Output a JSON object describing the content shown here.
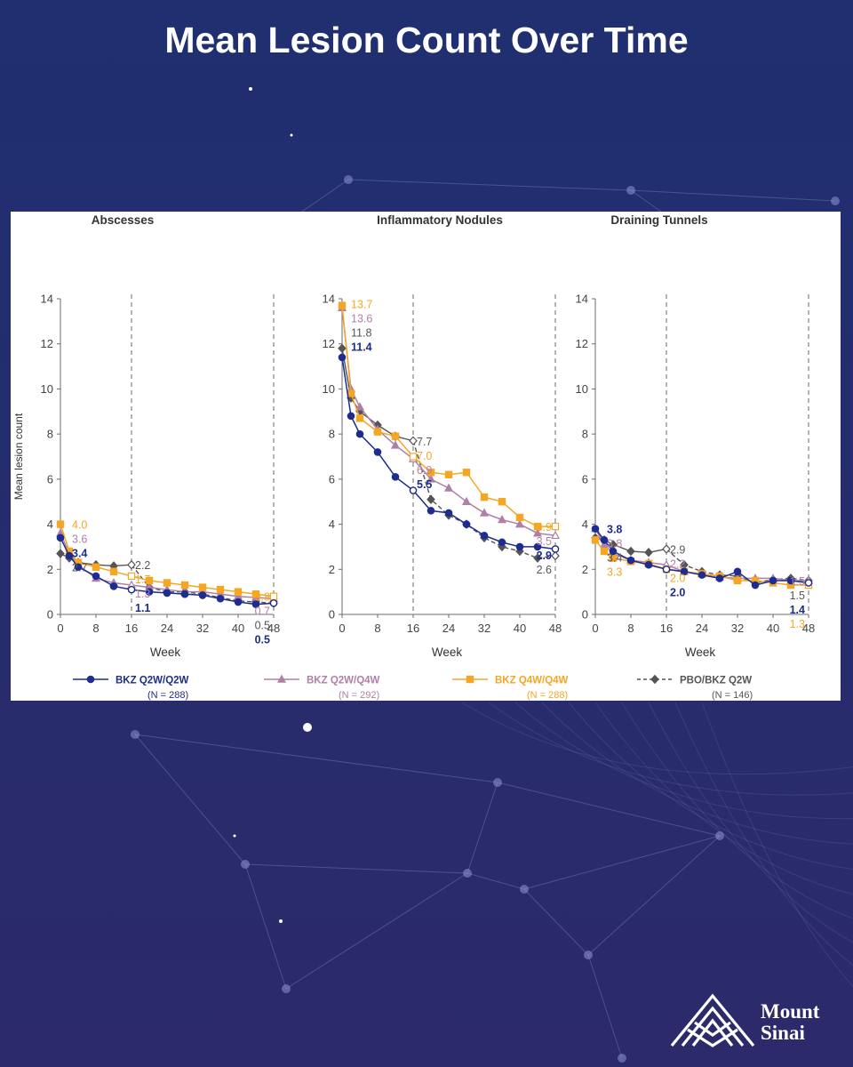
{
  "page": {
    "title": "Mean Lesion Count Over Time"
  },
  "brand": {
    "name_line1": "Mount",
    "name_line2": "Sinai"
  },
  "colors": {
    "background_top": "#1f2f70",
    "background_bottom": "#2c2a6a",
    "network": "#8e96d4",
    "q2w": "#1c2c8f",
    "q2wq4w": "#b07fa8",
    "q4w": "#f5a623",
    "pbo": "#555555",
    "axis": "#6b6b6b",
    "title_text": "#ffffff"
  },
  "chart_data": {
    "type": "line",
    "x": [
      0,
      2,
      4,
      8,
      12,
      16,
      20,
      24,
      28,
      32,
      36,
      40,
      44,
      48
    ],
    "xlabel": "Week",
    "ylabel": "Mean lesion count",
    "xticks": [
      0,
      8,
      16,
      24,
      32,
      40,
      48
    ],
    "yticks": [
      0,
      2,
      4,
      6,
      8,
      10,
      12,
      14
    ],
    "xlim": [
      0,
      48
    ],
    "ylim": [
      0,
      14
    ],
    "reference_lines_x": [
      16,
      48
    ],
    "legend": [
      {
        "key": "q2w",
        "label": "BKZ Q2W/Q2W",
        "n": "(N = 288)",
        "marker": "circle"
      },
      {
        "key": "q2wq4w",
        "label": "BKZ Q2W/Q4W",
        "n": "(N = 292)",
        "marker": "triangle"
      },
      {
        "key": "q4w",
        "label": "BKZ Q4W/Q4W",
        "n": "(N = 288)",
        "marker": "square"
      },
      {
        "key": "pbo",
        "label": "PBO/BKZ Q2W",
        "n": "(N = 146)",
        "marker": "diamond"
      }
    ],
    "panels": [
      {
        "title": "Abscesses",
        "series": [
          {
            "key": "q2w",
            "values": [
              3.4,
              2.6,
              2.1,
              1.7,
              1.25,
              1.1,
              1.0,
              0.95,
              0.9,
              0.85,
              0.7,
              0.55,
              0.45,
              0.5
            ]
          },
          {
            "key": "q2wq4w",
            "values": [
              3.6,
              2.7,
              2.2,
              1.6,
              1.4,
              1.3,
              1.2,
              1.1,
              1.0,
              1.0,
              0.9,
              0.8,
              0.75,
              0.7
            ]
          },
          {
            "key": "q4w",
            "values": [
              4.0,
              2.8,
              2.3,
              2.1,
              1.9,
              1.7,
              1.5,
              1.4,
              1.3,
              1.2,
              1.1,
              1.0,
              0.9,
              0.8
            ]
          },
          {
            "key": "pbo",
            "values": [
              2.7,
              2.5,
              2.3,
              2.2,
              2.15,
              2.2,
              1.2,
              1.0,
              1.0,
              0.9,
              0.75,
              0.6,
              0.55,
              0.5
            ]
          }
        ],
        "labels_start": [
          {
            "key": "q4w",
            "text": "4.0"
          },
          {
            "key": "q2wq4w",
            "text": "3.6"
          },
          {
            "key": "q2w",
            "text": "3.4"
          },
          {
            "key": "pbo",
            "text": "2.7"
          }
        ],
        "labels_mid": [
          {
            "key": "pbo",
            "text": "2.2"
          },
          {
            "key": "q4w",
            "text": "1.7"
          },
          {
            "key": "q2wq4w",
            "text": "1.3"
          },
          {
            "key": "q2w",
            "text": "1.1"
          }
        ],
        "labels_end": [
          {
            "key": "q4w",
            "text": "0.8"
          },
          {
            "key": "q2wq4w",
            "text": "0.7"
          },
          {
            "key": "pbo",
            "text": "0.5"
          },
          {
            "key": "q2w",
            "text": "0.5"
          }
        ]
      },
      {
        "title": "Inflammatory Nodules",
        "series": [
          {
            "key": "q2w",
            "values": [
              11.4,
              8.8,
              8.0,
              7.2,
              6.1,
              5.5,
              4.6,
              4.5,
              4.0,
              3.5,
              3.2,
              3.0,
              3.0,
              2.9
            ]
          },
          {
            "key": "q2wq4w",
            "values": [
              13.6,
              10.0,
              9.2,
              8.2,
              7.5,
              6.9,
              6.0,
              5.6,
              5.0,
              4.5,
              4.2,
              4.0,
              3.6,
              3.5
            ]
          },
          {
            "key": "q4w",
            "values": [
              13.7,
              9.8,
              8.7,
              8.1,
              7.9,
              7.0,
              6.3,
              6.2,
              6.3,
              5.2,
              5.0,
              4.3,
              3.9,
              3.9
            ]
          },
          {
            "key": "pbo",
            "values": [
              11.8,
              9.6,
              9.0,
              8.4,
              7.9,
              7.7,
              5.1,
              4.4,
              4.0,
              3.4,
              3.0,
              2.8,
              2.5,
              2.6
            ]
          }
        ],
        "labels_start": [
          {
            "key": "q4w",
            "text": "13.7"
          },
          {
            "key": "q2wq4w",
            "text": "13.6"
          },
          {
            "key": "pbo",
            "text": "11.8"
          },
          {
            "key": "q2w",
            "text": "11.4"
          }
        ],
        "labels_mid": [
          {
            "key": "pbo",
            "text": "7.7"
          },
          {
            "key": "q4w",
            "text": "7.0"
          },
          {
            "key": "q2wq4w",
            "text": "6.9"
          },
          {
            "key": "q2w",
            "text": "5.5"
          }
        ],
        "labels_end": [
          {
            "key": "q4w",
            "text": "3.9"
          },
          {
            "key": "q2wq4w",
            "text": "3.5"
          },
          {
            "key": "q2w",
            "text": "2.9"
          },
          {
            "key": "pbo",
            "text": "2.6"
          }
        ]
      },
      {
        "title": "Draining Tunnels",
        "series": [
          {
            "key": "q2w",
            "values": [
              3.8,
              3.3,
              2.8,
              2.4,
              2.2,
              2.0,
              1.9,
              1.75,
              1.6,
              1.9,
              1.3,
              1.5,
              1.5,
              1.4
            ]
          },
          {
            "key": "q2wq4w",
            "values": [
              3.8,
              3.1,
              2.7,
              2.4,
              2.3,
              2.2,
              1.9,
              1.8,
              1.65,
              1.6,
              1.6,
              1.6,
              1.5,
              1.5
            ]
          },
          {
            "key": "q4w",
            "values": [
              3.3,
              2.8,
              2.5,
              2.35,
              2.25,
              2.0,
              1.9,
              1.8,
              1.7,
              1.5,
              1.5,
              1.4,
              1.3,
              1.3
            ]
          },
          {
            "key": "pbo",
            "values": [
              3.4,
              3.3,
              3.1,
              2.8,
              2.75,
              2.9,
              2.2,
              1.9,
              1.75,
              1.7,
              1.4,
              1.55,
              1.6,
              1.5
            ]
          }
        ],
        "labels_start": [
          {
            "key": "q2w",
            "text": "3.8"
          },
          {
            "key": "q2wq4w",
            "text": "3.8"
          },
          {
            "key": "pbo",
            "text": "3.4"
          },
          {
            "key": "q4w",
            "text": "3.3"
          }
        ],
        "labels_mid": [
          {
            "key": "pbo",
            "text": "2.9"
          },
          {
            "key": "q2wq4w",
            "text": "2.2"
          },
          {
            "key": "q4w",
            "text": "2.0"
          },
          {
            "key": "q2w",
            "text": "2.0"
          }
        ],
        "labels_end": [
          {
            "key": "q2wq4w",
            "text": "1.5"
          },
          {
            "key": "pbo",
            "text": "1.5"
          },
          {
            "key": "q2w",
            "text": "1.4"
          },
          {
            "key": "q4w",
            "text": "1.3"
          }
        ]
      }
    ]
  }
}
